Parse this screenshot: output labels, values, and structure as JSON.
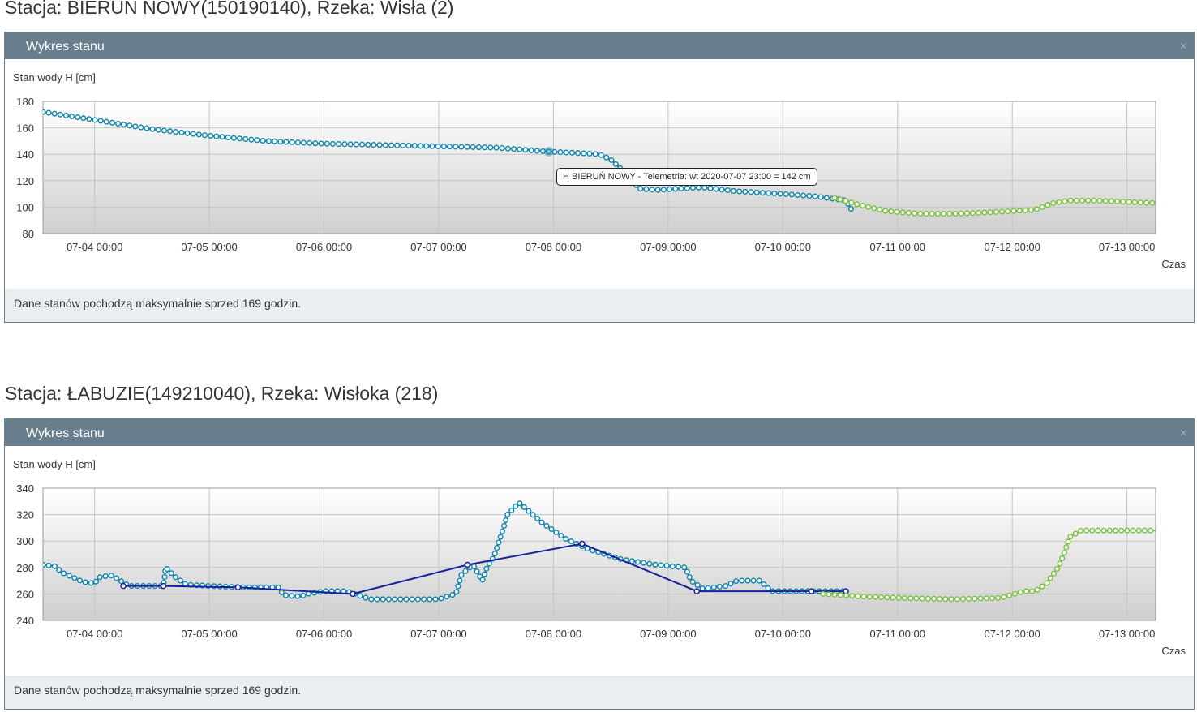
{
  "close_symbol": "×",
  "charts": [
    {
      "station_title": "Stacja: BIERUŃ NOWY(150190140), Rzeka: Wisła (2)",
      "panel_title": "Wykres stanu",
      "footer": "Dane stanów pochodzą maksymalnie sprzed 169 godzin.",
      "tooltip": "H BIERUŃ NOWY - Telemetria: wt 2020-07-07 23:00 = 142 cm"
    },
    {
      "station_title": "Stacja: ŁABUZIE(149210040), Rzeka: Wisłoka (218)",
      "panel_title": "Wykres stanu",
      "footer": "Dane stanów pochodzą maksymalnie sprzed 169 godzin.",
      "tooltip": ""
    }
  ],
  "chart_data": [
    {
      "type": "line",
      "ylabel": "Stan wody H [cm]",
      "xlabel": "Czas",
      "ylim": [
        80,
        180
      ],
      "yticks": [
        80,
        100,
        120,
        140,
        160,
        180
      ],
      "xlim_days": [
        3.55,
        13.25
      ],
      "xticks": [
        "07-04 00:00",
        "07-05 00:00",
        "07-06 00:00",
        "07-07 00:00",
        "07-08 00:00",
        "07-09 00:00",
        "07-10 00:00",
        "07-11 00:00",
        "07-12 00:00",
        "07-13 00:00"
      ],
      "xticks_days": [
        4,
        5,
        6,
        7,
        8,
        9,
        10,
        11,
        12,
        13
      ],
      "grid": true,
      "series": [
        {
          "color": "#1486ad",
          "marker": "circle",
          "x_days": [
            3.55,
            4.0,
            4.5,
            5.0,
            5.5,
            6.0,
            6.5,
            7.0,
            7.5,
            7.96,
            8.2,
            8.4,
            8.5,
            8.6,
            8.75,
            8.9,
            9.1,
            9.3,
            9.6,
            10.0,
            10.3,
            10.55,
            10.6
          ],
          "y": [
            172,
            166,
            159,
            154,
            150,
            148,
            147,
            146,
            145,
            142,
            141,
            140,
            136,
            128,
            114,
            113,
            114,
            115,
            112,
            110,
            108,
            105,
            98
          ]
        },
        {
          "color": "#7bc043",
          "marker": "circle",
          "x_days": [
            10.45,
            10.7,
            10.9,
            11.2,
            11.5,
            11.8,
            12.0,
            12.2,
            12.35,
            12.5,
            12.7,
            13.0,
            13.25
          ],
          "y": [
            107,
            101,
            97,
            95,
            95,
            96,
            97,
            98,
            103,
            105,
            105,
            104,
            103
          ]
        }
      ],
      "highlight_point": {
        "x_day": 7.96,
        "y": 142
      }
    },
    {
      "type": "line",
      "ylabel": "Stan wody H [cm]",
      "xlabel": "Czas",
      "ylim": [
        240,
        340
      ],
      "yticks": [
        240,
        260,
        280,
        300,
        320,
        340
      ],
      "xlim_days": [
        3.55,
        13.25
      ],
      "xticks": [
        "07-04 00:00",
        "07-05 00:00",
        "07-06 00:00",
        "07-07 00:00",
        "07-08 00:00",
        "07-09 00:00",
        "07-10 00:00",
        "07-11 00:00",
        "07-12 00:00",
        "07-13 00:00"
      ],
      "xticks_days": [
        4,
        5,
        6,
        7,
        8,
        9,
        10,
        11,
        12,
        13
      ],
      "grid": true,
      "series": [
        {
          "color": "#1486ad",
          "marker": "circle",
          "x_days": [
            3.55,
            3.65,
            3.72,
            3.8,
            3.9,
            4.0,
            4.05,
            4.15,
            4.3,
            4.4,
            4.6,
            4.62,
            4.7,
            4.8,
            5.0,
            5.3,
            5.6,
            5.65,
            5.8,
            5.85,
            6.0,
            6.2,
            6.3,
            6.4,
            7.0,
            7.15,
            7.2,
            7.3,
            7.38,
            7.42,
            7.48,
            7.55,
            7.6,
            7.7,
            7.9,
            8.1,
            8.3,
            8.6,
            8.9,
            9.15,
            9.2,
            9.3,
            9.5,
            9.6,
            9.8,
            9.9,
            10.2,
            10.55
          ],
          "y": [
            282,
            281,
            276,
            273,
            269,
            268,
            273,
            274,
            266,
            266,
            266,
            280,
            273,
            267,
            266,
            265,
            265,
            259,
            258,
            260,
            262,
            262,
            259,
            256,
            256,
            260,
            275,
            282,
            270,
            280,
            288,
            306,
            320,
            329,
            314,
            302,
            294,
            286,
            282,
            280,
            270,
            264,
            266,
            270,
            270,
            262,
            262,
            262
          ]
        },
        {
          "color": "#1a1f9c",
          "marker": "circle",
          "x_days": [
            4.25,
            4.6,
            5.25,
            6.25,
            7.25,
            8.25,
            9.25,
            10.25,
            10.55
          ],
          "y": [
            266,
            266,
            265,
            260,
            282,
            298,
            262,
            262,
            262
          ]
        },
        {
          "color": "#7bc043",
          "marker": "circle",
          "x_days": [
            10.35,
            10.7,
            11.0,
            11.5,
            11.9,
            12.1,
            12.2,
            12.3,
            12.4,
            12.45,
            12.5,
            12.6,
            13.0,
            13.25
          ],
          "y": [
            260,
            258,
            257,
            256,
            257,
            262,
            262,
            268,
            280,
            290,
            303,
            308,
            308,
            308
          ]
        }
      ]
    }
  ]
}
